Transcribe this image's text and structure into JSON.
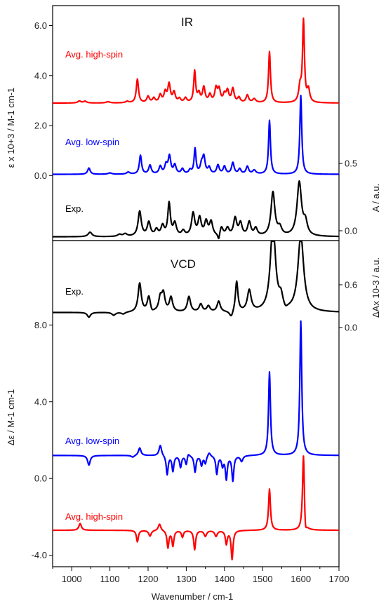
{
  "chart_data": [
    {
      "panel": "IR",
      "type": "line",
      "title": "IR",
      "x": {
        "label": "Wavenumber / cm-1",
        "range": [
          950,
          1700
        ],
        "ticks": [
          "1000",
          "1100",
          "1200",
          "1300",
          "1400",
          "1500",
          "1600",
          "1700"
        ]
      },
      "y_left": {
        "label": "ε x 10+3 / M-1 cm-1",
        "range": [
          -2.6,
          6.8
        ],
        "ticks": [
          "0.0",
          "2.0",
          "4.0",
          "6.0"
        ]
      },
      "y_right": {
        "label": "A / a.u.",
        "ticks": [
          "0.0",
          "0.5"
        ]
      },
      "series": [
        {
          "name": "Avg. high-spin",
          "color": "#ff0000",
          "baseline": 2.9,
          "scale": 1.0,
          "peaks": [
            [
              1020,
              0.08,
              5
            ],
            [
              1035,
              0.07,
              5
            ],
            [
              1095,
              0.05,
              6
            ],
            [
              1145,
              0.06,
              5
            ],
            [
              1172,
              0.95,
              3.5
            ],
            [
              1200,
              0.25,
              4
            ],
            [
              1215,
              0.18,
              4
            ],
            [
              1232,
              0.3,
              4
            ],
            [
              1245,
              0.4,
              4
            ],
            [
              1255,
              0.72,
              4
            ],
            [
              1268,
              0.4,
              4
            ],
            [
              1282,
              0.15,
              4
            ],
            [
              1298,
              0.18,
              4
            ],
            [
              1322,
              1.25,
              3
            ],
            [
              1333,
              0.35,
              4
            ],
            [
              1346,
              0.6,
              4
            ],
            [
              1362,
              0.3,
              4
            ],
            [
              1378,
              0.55,
              4
            ],
            [
              1386,
              0.5,
              4
            ],
            [
              1400,
              0.3,
              4
            ],
            [
              1408,
              0.45,
              4
            ],
            [
              1422,
              0.55,
              4
            ],
            [
              1438,
              0.2,
              4
            ],
            [
              1460,
              0.3,
              4
            ],
            [
              1478,
              0.15,
              5
            ],
            [
              1518,
              2.05,
              3
            ],
            [
              1598,
              0.6,
              4
            ],
            [
              1607,
              3.25,
              3
            ],
            [
              1620,
              0.5,
              4
            ]
          ]
        },
        {
          "name": "Avg. low-spin",
          "color": "#0000ff",
          "baseline": 0.05,
          "scale": 1.0,
          "peaks": [
            [
              1045,
              0.25,
              4
            ],
            [
              1100,
              0.05,
              6
            ],
            [
              1148,
              0.08,
              5
            ],
            [
              1180,
              0.75,
              3.5
            ],
            [
              1205,
              0.35,
              4
            ],
            [
              1232,
              0.3,
              4
            ],
            [
              1247,
              0.35,
              4
            ],
            [
              1256,
              0.7,
              4
            ],
            [
              1270,
              0.35,
              4
            ],
            [
              1290,
              0.2,
              4
            ],
            [
              1310,
              0.15,
              4
            ],
            [
              1323,
              1.0,
              3
            ],
            [
              1340,
              0.35,
              4
            ],
            [
              1346,
              0.65,
              4
            ],
            [
              1360,
              0.25,
              4
            ],
            [
              1383,
              0.35,
              4
            ],
            [
              1400,
              0.3,
              4
            ],
            [
              1422,
              0.45,
              4
            ],
            [
              1440,
              0.2,
              4
            ],
            [
              1460,
              0.3,
              4
            ],
            [
              1478,
              0.15,
              5
            ],
            [
              1518,
              2.15,
              3
            ],
            [
              1600,
              3.15,
              3
            ]
          ]
        },
        {
          "name": "Exp.",
          "color": "#000000",
          "baseline": -2.45,
          "scale": 1.0,
          "peaks": [
            [
              1048,
              0.18,
              6
            ],
            [
              1125,
              0.08,
              6
            ],
            [
              1140,
              0.1,
              6
            ],
            [
              1178,
              1.0,
              5
            ],
            [
              1202,
              0.55,
              5
            ],
            [
              1222,
              0.25,
              5
            ],
            [
              1238,
              0.4,
              5
            ],
            [
              1255,
              1.3,
              4
            ],
            [
              1270,
              0.5,
              5
            ],
            [
              1292,
              0.2,
              5
            ],
            [
              1318,
              0.9,
              5
            ],
            [
              1335,
              0.7,
              5
            ],
            [
              1352,
              0.55,
              5
            ],
            [
              1365,
              0.55,
              5
            ],
            [
              1392,
              0.35,
              5
            ],
            [
              1408,
              0.3,
              5
            ],
            [
              1428,
              0.7,
              5
            ],
            [
              1442,
              0.5,
              5
            ],
            [
              1465,
              0.55,
              5
            ],
            [
              1482,
              0.3,
              5
            ],
            [
              1527,
              1.75,
              6
            ],
            [
              1545,
              0.3,
              6
            ],
            [
              1596,
              2.15,
              7
            ],
            [
              1612,
              0.5,
              6
            ]
          ],
          "dips": [
            [
              1385,
              0.28,
              3
            ]
          ]
        }
      ]
    },
    {
      "panel": "VCD",
      "type": "line",
      "title": "VCD",
      "x": {
        "label": "Wavenumber / cm-1",
        "range": [
          950,
          1700
        ]
      },
      "y_left": {
        "label": "Δε / M-1 cm-1",
        "range": [
          -4.6,
          12.4
        ],
        "ticks": [
          "-4.0",
          "0.0",
          "4.0",
          "8.0"
        ]
      },
      "y_right": {
        "label": "ΔAx 10-3 / a.u.",
        "ticks": [
          "0.0",
          "0.6"
        ]
      },
      "series": [
        {
          "name": "Exp.",
          "color": "#000000",
          "baseline": 8.65,
          "peaks": [
            [
              1178,
              1.5,
              5
            ],
            [
              1202,
              0.8,
              5
            ],
            [
              1232,
              0.7,
              5
            ],
            [
              1240,
              0.9,
              5
            ],
            [
              1260,
              0.75,
              5
            ],
            [
              1307,
              0.8,
              5
            ],
            [
              1338,
              0.4,
              5
            ],
            [
              1358,
              0.3,
              5
            ],
            [
              1385,
              0.55,
              5
            ],
            [
              1432,
              1.6,
              4
            ],
            [
              1465,
              1.1,
              6
            ],
            [
              1527,
              4.6,
              8
            ],
            [
              1548,
              0.6,
              6
            ],
            [
              1600,
              4.0,
              9
            ]
          ],
          "dips": [
            [
              1045,
              0.25,
              5
            ],
            [
              1110,
              0.15,
              6
            ],
            [
              1135,
              0.1,
              6
            ],
            [
              1210,
              0.15,
              5
            ],
            [
              1418,
              0.35,
              6
            ],
            [
              1560,
              0.2,
              6
            ]
          ]
        },
        {
          "name": "Avg. low-spin",
          "color": "#0000ff",
          "baseline": 1.2,
          "peaks": [
            [
              1178,
              0.4,
              4
            ],
            [
              1232,
              0.55,
              4
            ],
            [
              1305,
              0.2,
              4
            ],
            [
              1360,
              0.2,
              4
            ],
            [
              1518,
              4.35,
              3
            ],
            [
              1600,
              7.0,
              3
            ]
          ],
          "dips": [
            [
              1045,
              0.5,
              4
            ],
            [
              1160,
              0.1,
              5
            ],
            [
              1250,
              1.0,
              3
            ],
            [
              1265,
              0.8,
              3
            ],
            [
              1285,
              0.6,
              3
            ],
            [
              1300,
              0.5,
              3
            ],
            [
              1323,
              0.85,
              3
            ],
            [
              1340,
              0.5,
              3
            ],
            [
              1350,
              0.4,
              3
            ],
            [
              1380,
              0.95,
              3
            ],
            [
              1395,
              0.5,
              3
            ],
            [
              1405,
              1.2,
              3
            ],
            [
              1422,
              1.3,
              3
            ],
            [
              1445,
              0.3,
              4
            ]
          ]
        },
        {
          "name": "Avg. high-spin",
          "color": "#ff0000",
          "baseline": -2.7,
          "peaks": [
            [
              1022,
              0.35,
              4
            ],
            [
              1230,
              0.35,
              4
            ],
            [
              1518,
              2.15,
              3
            ],
            [
              1607,
              4.05,
              3
            ]
          ],
          "dips": [
            [
              1172,
              0.6,
              3
            ],
            [
              1205,
              0.3,
              4
            ],
            [
              1252,
              0.9,
              3
            ],
            [
              1265,
              0.8,
              3
            ],
            [
              1290,
              0.35,
              3
            ],
            [
              1322,
              1.0,
              3
            ],
            [
              1350,
              0.3,
              4
            ],
            [
              1378,
              0.3,
              4
            ],
            [
              1405,
              0.7,
              3
            ],
            [
              1420,
              1.5,
              3
            ],
            [
              1612,
              0.7,
              3
            ]
          ]
        }
      ]
    }
  ]
}
